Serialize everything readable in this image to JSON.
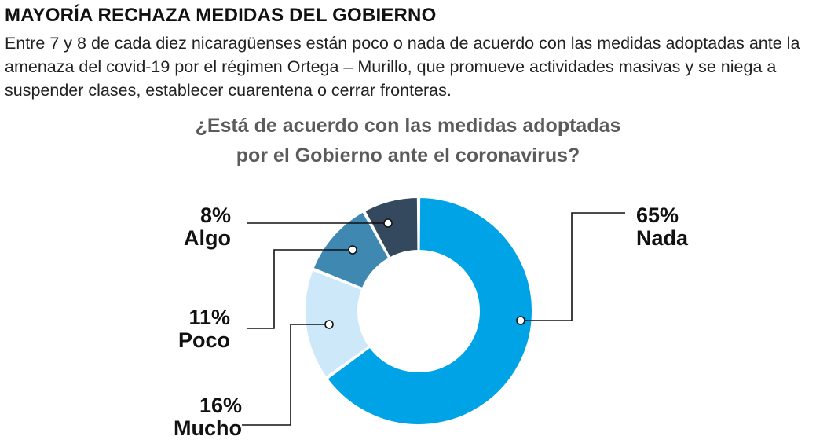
{
  "header": {
    "title": "MAYORÍA RECHAZA MEDIDAS DEL GOBIERNO",
    "intro": "Entre 7 y 8 de cada diez nicaragüenses están poco o nada de acuerdo con las medidas adoptadas ante la amenaza del covid-19 por el régimen Ortega – Murillo, que promueve actividades masivas y se niega a suspender clases, establecer cuarentena o cerrar fronteras."
  },
  "question": {
    "line1": "¿Está de acuerdo con las medidas adoptadas",
    "line2": "por el Gobierno ante el coronavirus?"
  },
  "chart_data": {
    "type": "pie",
    "donut": true,
    "title": "¿Está de acuerdo con las medidas adoptadas por el Gobierno ante el coronavirus?",
    "slices": [
      {
        "label": "Nada",
        "value": 65,
        "value_label": "65%",
        "color": "#00a3e6"
      },
      {
        "label": "Mucho",
        "value": 16,
        "value_label": "16%",
        "color": "#cde8f8"
      },
      {
        "label": "Poco",
        "value": 11,
        "value_label": "11%",
        "color": "#3e88b2"
      },
      {
        "label": "Algo",
        "value": 8,
        "value_label": "8%",
        "color": "#34495e"
      }
    ]
  }
}
